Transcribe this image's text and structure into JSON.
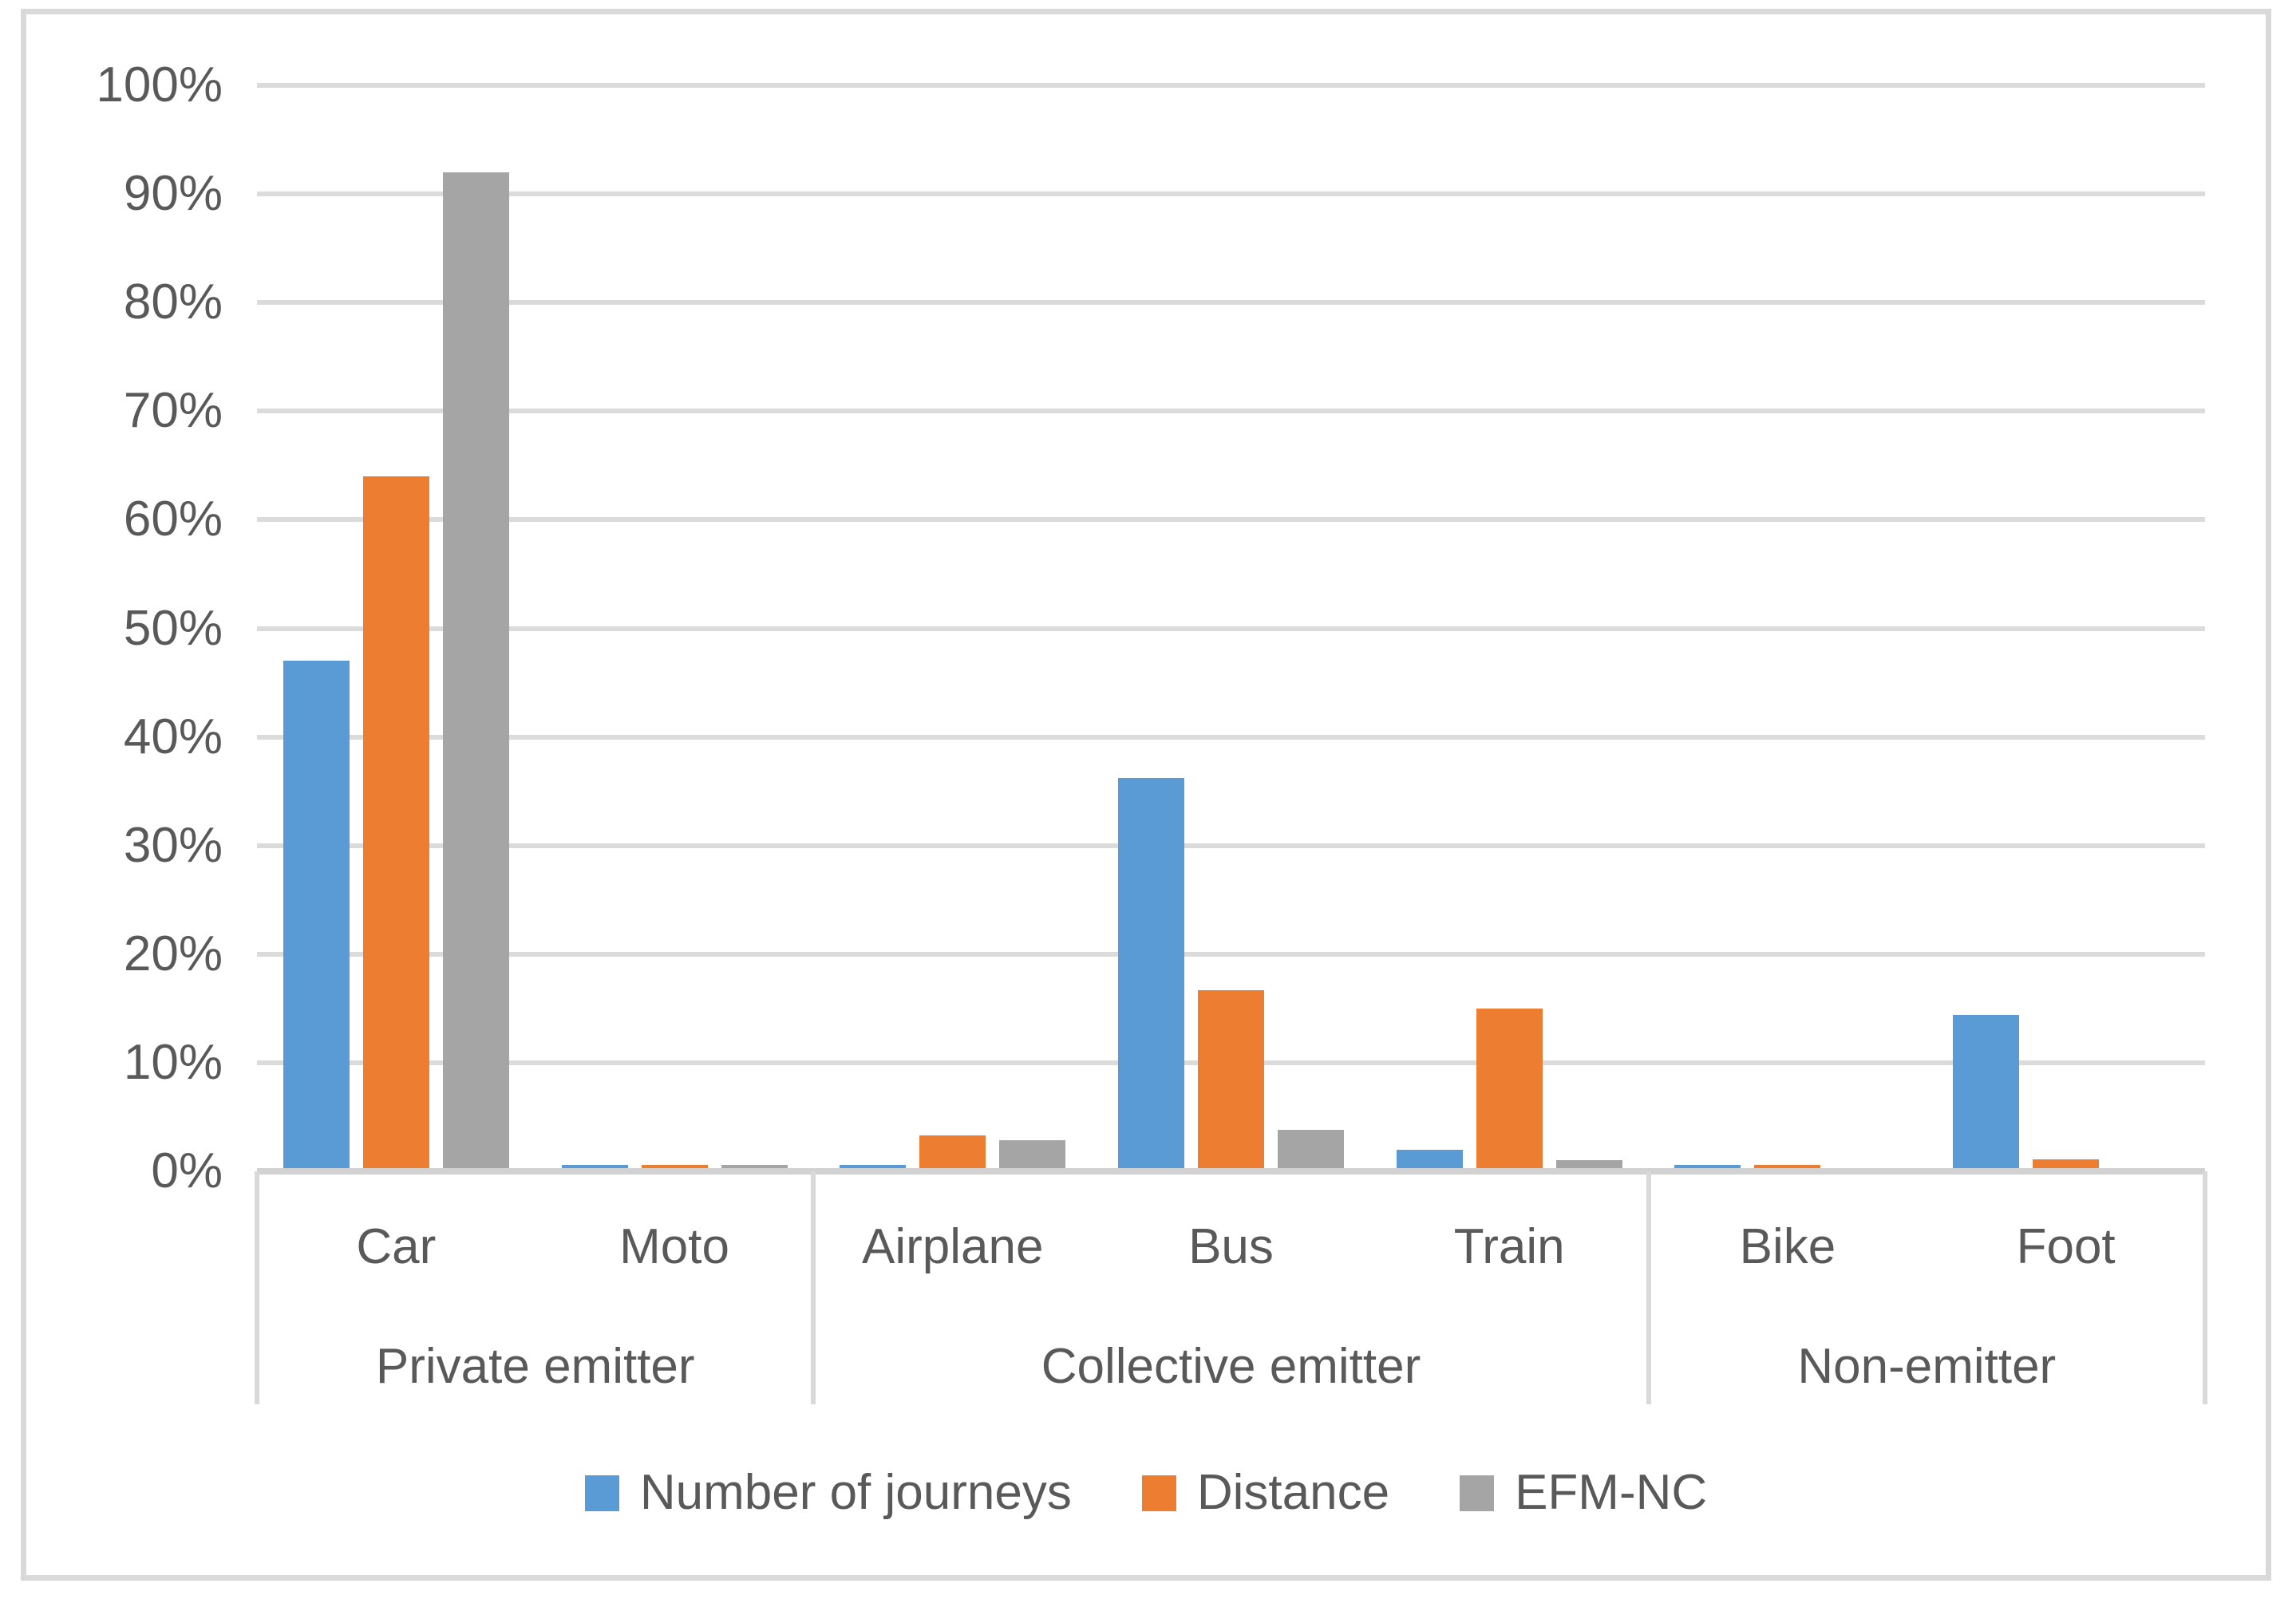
{
  "chart_data": {
    "type": "bar",
    "title": "",
    "xlabel": "",
    "ylabel": "",
    "y_axis": {
      "min": 0,
      "max": 100,
      "step": 10,
      "tick_labels": [
        "0%",
        "10%",
        "20%",
        "30%",
        "40%",
        "50%",
        "60%",
        "70%",
        "80%",
        "90%",
        "100%"
      ]
    },
    "categories": [
      "Car",
      "Moto",
      "Airplane",
      "Bus",
      "Train",
      "Bike",
      "Foot"
    ],
    "groups": [
      {
        "label": "Private emitter",
        "categories": [
          "Car",
          "Moto"
        ]
      },
      {
        "label": "Collective emitter",
        "categories": [
          "Airplane",
          "Bus",
          "Train"
        ]
      },
      {
        "label": "Non-emitter",
        "categories": [
          "Bike",
          "Foot"
        ]
      }
    ],
    "series": [
      {
        "name": "Number of journeys",
        "color": "#5B9BD5",
        "values": [
          47,
          0.6,
          0.6,
          36.2,
          2,
          0.6,
          14.4
        ]
      },
      {
        "name": "Distance",
        "color": "#ED7D31",
        "values": [
          64,
          0.6,
          3.3,
          16.7,
          15,
          0.6,
          1.1
        ]
      },
      {
        "name": "EFM-NC",
        "color": "#A5A5A5",
        "values": [
          92,
          0.6,
          2.9,
          3.8,
          1,
          0,
          0
        ]
      }
    ],
    "legend_position": "bottom",
    "grid": true,
    "gridline_color": "#DBDBDB",
    "axis_line_color": "#D2D2D2",
    "divider_color": "#D9D9D9",
    "text_color": "#595959",
    "border_color": "#D9D9D9"
  }
}
